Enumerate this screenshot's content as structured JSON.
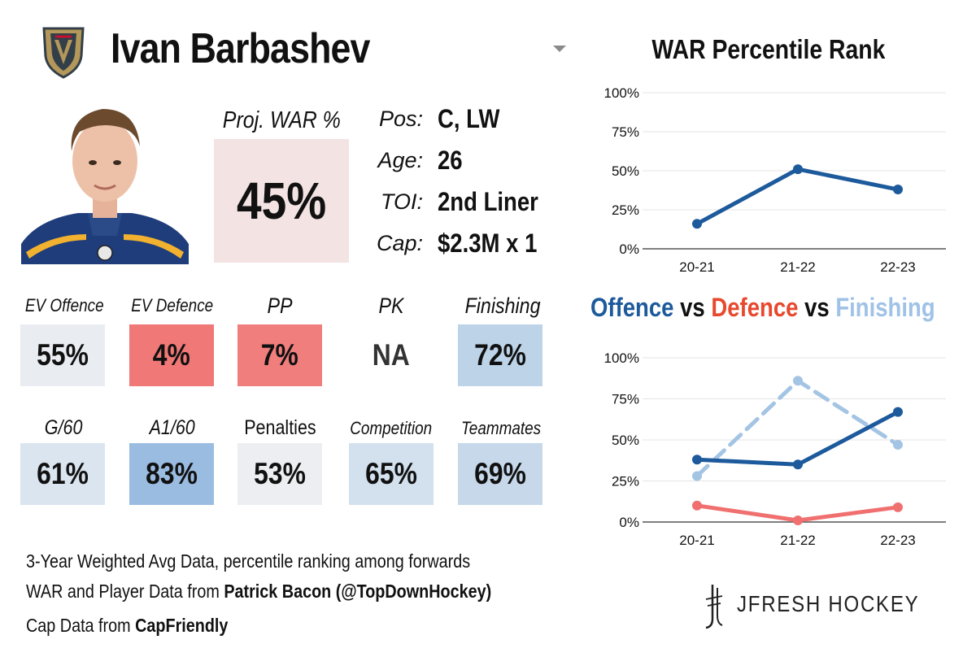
{
  "player": {
    "name": "Ivan Barbashev",
    "team_logo": "vegas-golden-knights-helmet-logo",
    "proj_war_label": "Proj. WAR %",
    "proj_war_value": "45%",
    "info": [
      {
        "label": "Pos:",
        "value": "C, LW"
      },
      {
        "label": "Age:",
        "value": "26"
      },
      {
        "label": "TOI:",
        "value": "2nd Liner"
      },
      {
        "label": "Cap:",
        "value": "$2.3M x 1"
      }
    ]
  },
  "stats_row1": [
    {
      "label": "EV Offence",
      "value": "55%",
      "color": "#e9ecf1"
    },
    {
      "label": "EV Defence",
      "value": "4%",
      "color": "#f07877"
    },
    {
      "label": "PP",
      "value": "7%",
      "color": "#f07e7d"
    },
    {
      "label": "PK",
      "value": "NA",
      "color": "#ffffff"
    },
    {
      "label": "Finishing",
      "value": "72%",
      "color": "#bcd3e8"
    }
  ],
  "stats_row2": [
    {
      "label": "G/60",
      "value": "61%",
      "color": "#dbe5f0"
    },
    {
      "label": "A1/60",
      "value": "83%",
      "color": "#99bce0"
    },
    {
      "label": "Penalties",
      "value": "53%",
      "color": "#eceef1"
    },
    {
      "label": "Competition",
      "value": "65%",
      "color": "#d3e1ee"
    },
    {
      "label": "Teammates",
      "value": "69%",
      "color": "#c6d8ea"
    }
  ],
  "footer": {
    "line1": "3-Year Weighted Avg Data, percentile ranking among forwards",
    "line2_prefix": "WAR and Player Data from ",
    "line2_bold": "Patrick Bacon (@TopDownHockey)",
    "line3_prefix": "Cap Data from ",
    "line3_bold": "CapFriendly"
  },
  "brand": {
    "text": "JFRESH HOCKEY",
    "icon": "jfresh-hockey-stick-icon"
  },
  "colors": {
    "offence": "#1d5a9c",
    "defence": "#f07070",
    "finishing": "#a4c4e4",
    "war": "#1d5a9c"
  },
  "chart_data": [
    {
      "type": "line",
      "title": "WAR Percentile Rank",
      "categories": [
        "20-21",
        "21-22",
        "22-23"
      ],
      "yticks": [
        "0%",
        "25%",
        "50%",
        "75%",
        "100%"
      ],
      "ylim": [
        0,
        100
      ],
      "series": [
        {
          "name": "WAR",
          "values": [
            16,
            51,
            38
          ],
          "color": "#1d5a9c",
          "dashed": false
        }
      ]
    },
    {
      "type": "line",
      "title_parts": [
        {
          "text": "Offence",
          "color": "#1d5a9c"
        },
        {
          "text": " vs ",
          "color": "#111111"
        },
        {
          "text": "Defence",
          "color": "#e8482e"
        },
        {
          "text": " vs ",
          "color": "#111111"
        },
        {
          "text": "Finishing",
          "color": "#9fc2e6"
        }
      ],
      "categories": [
        "20-21",
        "21-22",
        "22-23"
      ],
      "yticks": [
        "0%",
        "25%",
        "50%",
        "75%",
        "100%"
      ],
      "ylim": [
        0,
        100
      ],
      "series": [
        {
          "name": "Finishing",
          "values": [
            28,
            86,
            47
          ],
          "color": "#a4c4e4",
          "dashed": true
        },
        {
          "name": "Defence",
          "values": [
            10,
            1,
            9
          ],
          "color": "#f07070",
          "dashed": false
        },
        {
          "name": "Offence",
          "values": [
            38,
            35,
            67
          ],
          "color": "#1d5a9c",
          "dashed": false
        }
      ]
    }
  ]
}
